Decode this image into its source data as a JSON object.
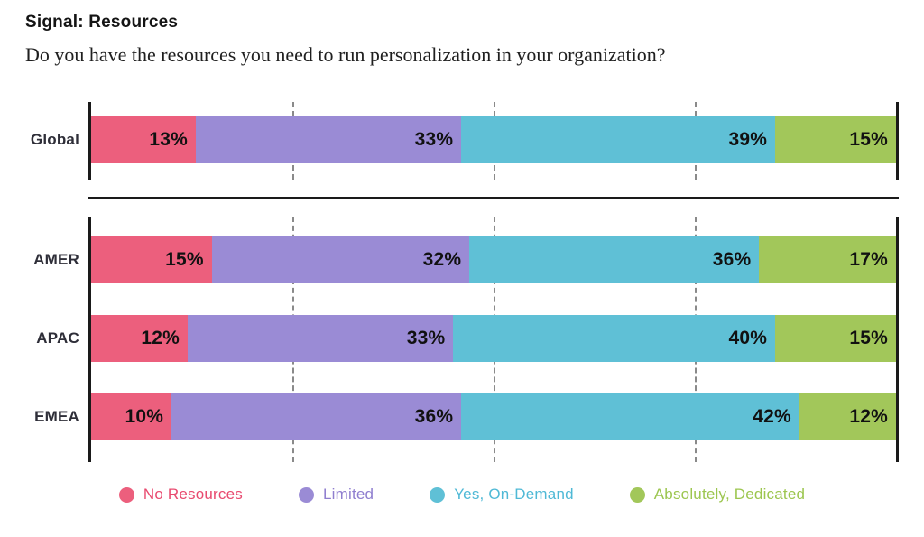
{
  "title": "Signal: Resources",
  "question": "Do you have the resources you need to run personalization in your organization?",
  "colors": {
    "axis": "#1a1a1a",
    "gridline": "#8a8a8a",
    "value_label_text": "#111111",
    "row_label_text": "#2e2e38",
    "background": "#ffffff"
  },
  "chart_data": {
    "type": "bar",
    "stacked": true,
    "orientation": "horizontal",
    "unit": "%",
    "xlim": [
      0,
      100
    ],
    "grid": true,
    "gridlines_percent": [
      25,
      50,
      75
    ],
    "title": "Signal: Resources",
    "xlabel": "",
    "ylabel": "",
    "series_names": [
      "No Resources",
      "Limited",
      "Yes, On-Demand",
      "Absolutely, Dedicated"
    ],
    "series_colors": [
      "#EC5F7D",
      "#9A8BD5",
      "#5FC0D6",
      "#A2C75A"
    ],
    "groups": [
      {
        "name": "global",
        "rows": [
          {
            "label": "Global",
            "values": [
              13,
              33,
              39,
              15
            ]
          }
        ]
      },
      {
        "name": "regions",
        "rows": [
          {
            "label": "AMER",
            "values": [
              15,
              32,
              36,
              17
            ]
          },
          {
            "label": "APAC",
            "values": [
              12,
              33,
              40,
              15
            ]
          },
          {
            "label": "EMEA",
            "values": [
              10,
              36,
              42,
              12
            ]
          }
        ]
      }
    ],
    "legend": {
      "position": "bottom",
      "items": [
        {
          "label": "No Resources",
          "dot_color": "#EC5F7D",
          "text_color": "#E84A6F"
        },
        {
          "label": "Limited",
          "dot_color": "#9A8BD5",
          "text_color": "#8F7ECF"
        },
        {
          "label": "Yes, On-Demand",
          "dot_color": "#5FC0D6",
          "text_color": "#4FB9D6"
        },
        {
          "label": "Absolutely, Dedicated",
          "dot_color": "#A2C75A",
          "text_color": "#9CC64F"
        }
      ]
    }
  }
}
